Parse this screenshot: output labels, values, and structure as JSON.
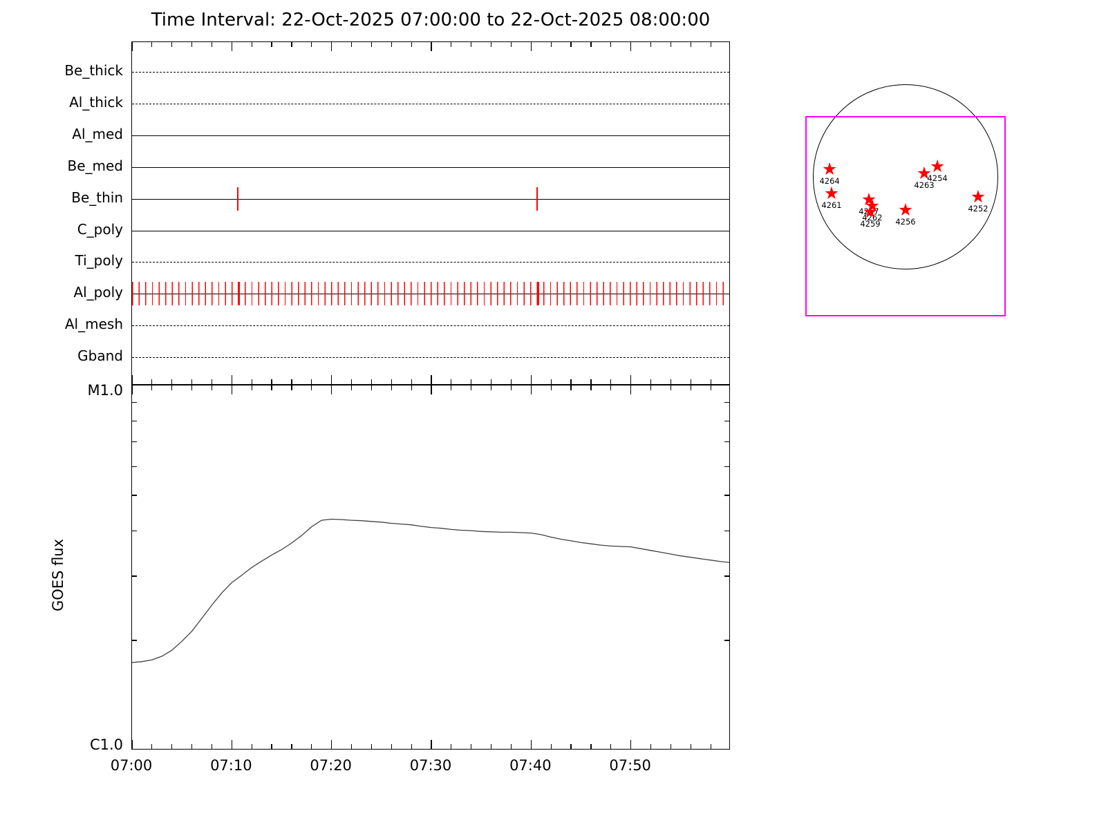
{
  "title": "Time Interval: 22-Oct-2025 07:00:00 to 22-Oct-2025 08:00:00",
  "colors": {
    "exposure_red": "#ff0000",
    "fov_magenta": "#ff00ff",
    "line_black": "#000000",
    "curve_gray": "#404040"
  },
  "filter_panel": {
    "rows": [
      {
        "label": "Be_thick",
        "style": "dashed"
      },
      {
        "label": "Al_thick",
        "style": "dashed"
      },
      {
        "label": "Al_med",
        "style": "solid"
      },
      {
        "label": "Be_med",
        "style": "solid"
      },
      {
        "label": "Be_thin",
        "style": "solid",
        "marks_min": [
          10.6,
          40.6
        ]
      },
      {
        "label": "C_poly",
        "style": "solid"
      },
      {
        "label": "Ti_poly",
        "style": "dashed"
      },
      {
        "label": "Al_poly",
        "style": "solid",
        "dense_ticks": true,
        "marks_min": [
          10.7,
          40.7
        ]
      },
      {
        "label": "Al_mesh",
        "style": "dashed"
      },
      {
        "label": "Gband",
        "style": "dashed"
      }
    ]
  },
  "chart_data": {
    "type": "line",
    "title": "Time Interval: 22-Oct-2025 07:00:00 to 22-Oct-2025 08:00:00",
    "ylabel": "GOES flux",
    "y_axis": {
      "top_label": "M1.0",
      "bottom_label": "C1.0",
      "scale": "log",
      "ymin": "C1.0 (1e-6 W/m2)",
      "ymax": "M1.0 (1e-5 W/m2)"
    },
    "x_ticks": [
      "07:00",
      "07:10",
      "07:20",
      "07:30",
      "07:40",
      "07:50"
    ],
    "x_range_minutes": [
      0,
      60
    ],
    "series": [
      {
        "name": "GOES flux",
        "units": "C-class (1e-6 W/m2)",
        "points": [
          [
            0,
            1.74
          ],
          [
            1,
            1.75
          ],
          [
            2,
            1.77
          ],
          [
            3,
            1.81
          ],
          [
            4,
            1.88
          ],
          [
            5,
            1.99
          ],
          [
            6,
            2.12
          ],
          [
            7,
            2.3
          ],
          [
            8,
            2.5
          ],
          [
            9,
            2.7
          ],
          [
            10,
            2.88
          ],
          [
            11,
            3.02
          ],
          [
            12,
            3.17
          ],
          [
            13,
            3.3
          ],
          [
            14,
            3.43
          ],
          [
            15,
            3.55
          ],
          [
            16,
            3.7
          ],
          [
            17,
            3.88
          ],
          [
            18,
            4.1
          ],
          [
            19,
            4.27
          ],
          [
            20,
            4.3
          ],
          [
            21,
            4.29
          ],
          [
            22,
            4.27
          ],
          [
            23,
            4.26
          ],
          [
            24,
            4.24
          ],
          [
            25,
            4.22
          ],
          [
            26,
            4.19
          ],
          [
            27,
            4.17
          ],
          [
            28,
            4.15
          ],
          [
            29,
            4.11
          ],
          [
            30,
            4.08
          ],
          [
            31,
            4.06
          ],
          [
            32,
            4.03
          ],
          [
            33,
            4.01
          ],
          [
            34,
            4.0
          ],
          [
            35,
            3.98
          ],
          [
            36,
            3.97
          ],
          [
            37,
            3.96
          ],
          [
            38,
            3.96
          ],
          [
            39,
            3.95
          ],
          [
            40,
            3.94
          ],
          [
            41,
            3.9
          ],
          [
            42,
            3.84
          ],
          [
            43,
            3.79
          ],
          [
            44,
            3.75
          ],
          [
            45,
            3.71
          ],
          [
            46,
            3.68
          ],
          [
            47,
            3.65
          ],
          [
            48,
            3.63
          ],
          [
            49,
            3.62
          ],
          [
            50,
            3.61
          ],
          [
            51,
            3.57
          ],
          [
            52,
            3.53
          ],
          [
            53,
            3.49
          ],
          [
            54,
            3.45
          ],
          [
            55,
            3.41
          ],
          [
            56,
            3.38
          ],
          [
            57,
            3.35
          ],
          [
            58,
            3.32
          ],
          [
            59,
            3.29
          ],
          [
            60,
            3.27
          ]
        ]
      }
    ]
  },
  "solar_map": {
    "regions": [
      {
        "noaa": "4264",
        "fx": 0.121,
        "fy": 0.269
      },
      {
        "noaa": "4261",
        "fx": 0.131,
        "fy": 0.39
      },
      {
        "noaa": "4257",
        "fx": 0.317,
        "fy": 0.421
      },
      {
        "noaa": "4262",
        "fx": 0.334,
        "fy": 0.452
      },
      {
        "noaa": "4259",
        "fx": 0.324,
        "fy": 0.483
      },
      {
        "noaa": "4256",
        "fx": 0.5,
        "fy": 0.472
      },
      {
        "noaa": "4263",
        "fx": 0.593,
        "fy": 0.29
      },
      {
        "noaa": "4254",
        "fx": 0.659,
        "fy": 0.255
      },
      {
        "noaa": "4252",
        "fx": 0.862,
        "fy": 0.407
      }
    ]
  }
}
